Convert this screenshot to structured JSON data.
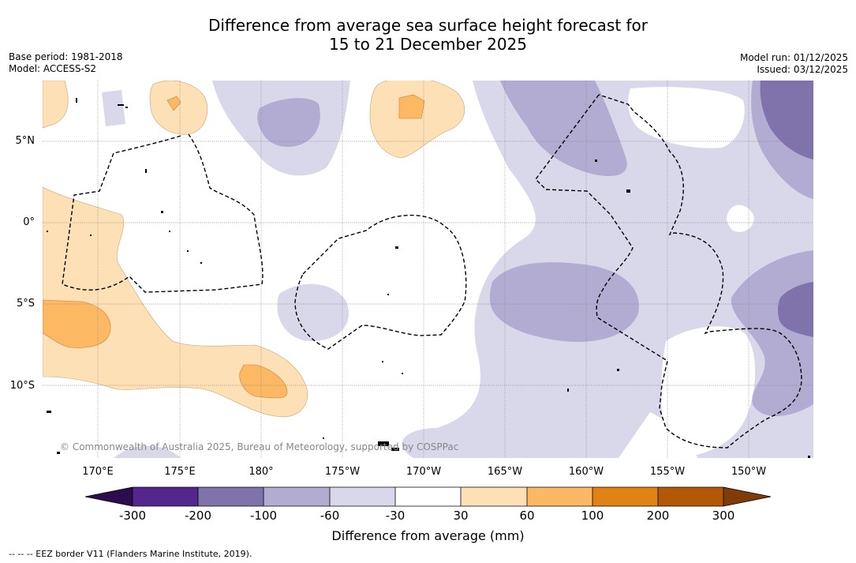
{
  "title_line1": "Difference from average sea surface height forecast for",
  "title_line2": "15 to 21 December 2025",
  "meta_left": {
    "base_period": "Base period: 1981-2018",
    "model": "Model: ACCESS-S2"
  },
  "meta_right": {
    "model_run": "Model run: 01/12/2025",
    "issued": "Issued: 03/12/2025"
  },
  "latitude_labels": [
    "5°N",
    "0°",
    "5°S",
    "10°S"
  ],
  "longitude_labels": [
    "170°E",
    "175°E",
    "180°",
    "175°W",
    "170°W",
    "165°W",
    "160°W",
    "155°W",
    "150°W"
  ],
  "copyright": "© Commonwealth of Australia 2025, Bureau of Meteorology, supported by COSPPac",
  "colorbar": {
    "title": "Difference from average (mm)",
    "ticks": [
      "-300",
      "-200",
      "-100",
      "-60",
      "-30",
      "30",
      "60",
      "100",
      "200",
      "300"
    ],
    "colors": [
      "#2d0b4f",
      "#54278f",
      "#8073ac",
      "#b2abd2",
      "#d8d8ea",
      "#ffffff",
      "#fee0b6",
      "#fdb863",
      "#e08214",
      "#b35806",
      "#7f3b08"
    ]
  },
  "eez_note": "-- -- -- EEZ border V11 (Flanders Marine Institute, 2019)."
}
